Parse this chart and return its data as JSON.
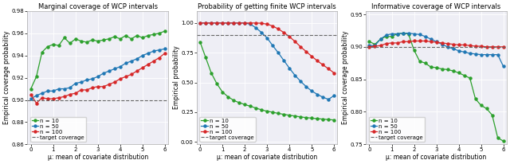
{
  "plot1": {
    "title": "Marginal coverage of WCP intervals",
    "ylabel": "Empirical coverage probability",
    "xlabel": "μ: mean of covariate distribution",
    "ylim": [
      0.86,
      0.98
    ],
    "yticks": [
      0.86,
      0.88,
      0.9,
      0.92,
      0.94,
      0.96,
      0.98
    ],
    "xlim": [
      -0.15,
      6.15
    ],
    "xticks": [
      0,
      1,
      2,
      3,
      4,
      5,
      6
    ],
    "target_coverage": 0.9,
    "n10_x": [
      0.0,
      0.25,
      0.5,
      0.75,
      1.0,
      1.25,
      1.5,
      1.75,
      2.0,
      2.25,
      2.5,
      2.75,
      3.0,
      3.25,
      3.5,
      3.75,
      4.0,
      4.25,
      4.5,
      4.75,
      5.0,
      5.25,
      5.5,
      5.75,
      6.0
    ],
    "n10_y": [
      0.91,
      0.921,
      0.943,
      0.948,
      0.95,
      0.949,
      0.956,
      0.951,
      0.955,
      0.953,
      0.952,
      0.954,
      0.953,
      0.954,
      0.955,
      0.957,
      0.955,
      0.958,
      0.955,
      0.958,
      0.956,
      0.958,
      0.959,
      0.96,
      0.962
    ],
    "n50_x": [
      0.0,
      0.25,
      0.5,
      0.75,
      1.0,
      1.25,
      1.5,
      1.75,
      2.0,
      2.25,
      2.5,
      2.75,
      3.0,
      3.25,
      3.5,
      3.75,
      4.0,
      4.25,
      4.5,
      4.75,
      5.0,
      5.25,
      5.5,
      5.75,
      6.0
    ],
    "n50_y": [
      0.901,
      0.904,
      0.906,
      0.908,
      0.908,
      0.91,
      0.91,
      0.911,
      0.915,
      0.916,
      0.918,
      0.919,
      0.921,
      0.924,
      0.926,
      0.928,
      0.93,
      0.933,
      0.935,
      0.937,
      0.94,
      0.942,
      0.944,
      0.945,
      0.946
    ],
    "n100_x": [
      0.0,
      0.25,
      0.5,
      0.75,
      1.0,
      1.25,
      1.5,
      1.75,
      2.0,
      2.25,
      2.5,
      2.75,
      3.0,
      3.25,
      3.5,
      3.75,
      4.0,
      4.25,
      4.5,
      4.75,
      5.0,
      5.25,
      5.5,
      5.75,
      6.0
    ],
    "n100_y": [
      0.905,
      0.897,
      0.902,
      0.901,
      0.901,
      0.902,
      0.903,
      0.905,
      0.906,
      0.909,
      0.909,
      0.911,
      0.912,
      0.912,
      0.914,
      0.916,
      0.919,
      0.921,
      0.923,
      0.926,
      0.929,
      0.932,
      0.935,
      0.938,
      0.942
    ]
  },
  "plot2": {
    "title": "Probability of getting finite WCP intervals",
    "ylabel": "Empirical probability",
    "xlabel": "μ: mean of covariate distribution",
    "ylim": [
      -0.02,
      1.1
    ],
    "yticks": [
      0.0,
      0.25,
      0.5,
      0.75,
      1.0
    ],
    "xlim": [
      -0.15,
      6.15
    ],
    "xticks": [
      0,
      1,
      2,
      3,
      4,
      5,
      6
    ],
    "target_coverage": 0.9,
    "n10_x": [
      0.0,
      0.25,
      0.5,
      0.75,
      1.0,
      1.25,
      1.5,
      1.75,
      2.0,
      2.25,
      2.5,
      2.75,
      3.0,
      3.25,
      3.5,
      3.75,
      4.0,
      4.25,
      4.5,
      4.75,
      5.0,
      5.25,
      5.5,
      5.75,
      6.0
    ],
    "n10_y": [
      0.84,
      0.71,
      0.58,
      0.49,
      0.42,
      0.38,
      0.35,
      0.33,
      0.315,
      0.3,
      0.285,
      0.27,
      0.258,
      0.25,
      0.24,
      0.232,
      0.224,
      0.218,
      0.21,
      0.205,
      0.2,
      0.196,
      0.192,
      0.188,
      0.185
    ],
    "n50_x": [
      0.0,
      0.25,
      0.5,
      0.75,
      1.0,
      1.25,
      1.5,
      1.75,
      2.0,
      2.25,
      2.5,
      2.75,
      3.0,
      3.25,
      3.5,
      3.75,
      4.0,
      4.25,
      4.5,
      4.75,
      5.0,
      5.25,
      5.5,
      5.75,
      6.0
    ],
    "n50_y": [
      1.0,
      1.0,
      1.0,
      1.0,
      1.0,
      1.0,
      1.0,
      1.0,
      1.0,
      0.99,
      0.96,
      0.92,
      0.875,
      0.81,
      0.75,
      0.685,
      0.62,
      0.56,
      0.51,
      0.465,
      0.428,
      0.4,
      0.376,
      0.358,
      0.39
    ],
    "n100_x": [
      0.0,
      0.25,
      0.5,
      0.75,
      1.0,
      1.25,
      1.5,
      1.75,
      2.0,
      2.25,
      2.5,
      2.75,
      3.0,
      3.25,
      3.5,
      3.75,
      4.0,
      4.25,
      4.5,
      4.75,
      5.0,
      5.25,
      5.5,
      5.75,
      6.0
    ],
    "n100_y": [
      1.0,
      1.0,
      1.0,
      1.0,
      1.0,
      1.0,
      1.0,
      1.0,
      1.0,
      1.0,
      1.0,
      0.998,
      0.99,
      0.975,
      0.95,
      0.92,
      0.885,
      0.845,
      0.8,
      0.76,
      0.72,
      0.682,
      0.648,
      0.615,
      0.58
    ]
  },
  "plot3": {
    "title": "Informative coverage of WCP intervals",
    "ylabel": "Empirical coverage probability",
    "xlabel": "μ: mean of covariate distribution",
    "ylim": [
      0.75,
      0.955
    ],
    "yticks": [
      0.75,
      0.8,
      0.85,
      0.9,
      0.95
    ],
    "xlim": [
      -0.15,
      6.15
    ],
    "xticks": [
      0,
      1,
      2,
      3,
      4,
      5,
      6
    ],
    "target_coverage": 0.9,
    "n10_x": [
      0.0,
      0.25,
      0.5,
      0.75,
      1.0,
      1.25,
      1.5,
      1.75,
      2.0,
      2.25,
      2.5,
      2.75,
      3.0,
      3.25,
      3.5,
      3.75,
      4.0,
      4.25,
      4.5,
      4.75,
      5.0,
      5.25,
      5.5,
      5.75,
      6.0
    ],
    "n10_y": [
      0.908,
      0.904,
      0.912,
      0.916,
      0.916,
      0.92,
      0.921,
      0.92,
      0.895,
      0.878,
      0.875,
      0.869,
      0.868,
      0.866,
      0.865,
      0.863,
      0.86,
      0.856,
      0.852,
      0.82,
      0.81,
      0.805,
      0.795,
      0.76,
      0.755
    ],
    "n50_x": [
      0.0,
      0.25,
      0.5,
      0.75,
      1.0,
      1.25,
      1.5,
      1.75,
      2.0,
      2.25,
      2.5,
      2.75,
      3.0,
      3.25,
      3.5,
      3.75,
      4.0,
      4.25,
      4.5,
      4.75,
      5.0,
      5.25,
      5.5,
      5.75,
      6.0
    ],
    "n50_y": [
      0.902,
      0.902,
      0.912,
      0.918,
      0.92,
      0.92,
      0.921,
      0.921,
      0.92,
      0.919,
      0.916,
      0.912,
      0.908,
      0.904,
      0.9,
      0.897,
      0.894,
      0.892,
      0.89,
      0.889,
      0.888,
      0.888,
      0.888,
      0.888,
      0.87
    ],
    "n100_x": [
      0.0,
      0.25,
      0.5,
      0.75,
      1.0,
      1.25,
      1.5,
      1.75,
      2.0,
      2.25,
      2.5,
      2.75,
      3.0,
      3.25,
      3.5,
      3.75,
      4.0,
      4.25,
      4.5,
      4.75,
      5.0,
      5.25,
      5.5,
      5.75,
      6.0
    ],
    "n100_y": [
      0.9,
      0.901,
      0.902,
      0.905,
      0.906,
      0.906,
      0.908,
      0.908,
      0.909,
      0.909,
      0.909,
      0.908,
      0.907,
      0.906,
      0.905,
      0.904,
      0.903,
      0.903,
      0.902,
      0.901,
      0.901,
      0.9,
      0.9,
      0.9,
      0.9
    ]
  },
  "color_n10": "#2ca02c",
  "color_n50": "#1f77b4",
  "color_n100": "#d62728",
  "color_target": "#666666",
  "marker": "o",
  "markersize": 2.2,
  "linewidth": 0.9,
  "legend_fontsize": 5.0,
  "title_fontsize": 6.0,
  "label_fontsize": 5.5,
  "tick_fontsize": 5.0,
  "bg_color": "#eeeef5"
}
